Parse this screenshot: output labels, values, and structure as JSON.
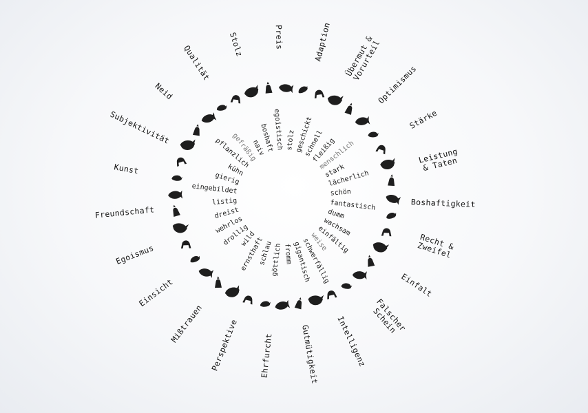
{
  "outer_labels": [
    "Adaption",
    [
      "Übermut &",
      "Vorurteil"
    ],
    "Optimismus",
    "Stärke",
    [
      "Leistung",
      "& Taten"
    ],
    "Boshaftigkeit",
    [
      "Recht &",
      "Zweifel"
    ],
    "Einfalt",
    [
      "Falscher",
      "Schein"
    ],
    "Intelligenz",
    "Gutmütigkeit",
    "Ehrfurcht",
    "Perspektive",
    "Mißtrauen",
    "Einsicht",
    "Egoismus",
    "Freundschaft",
    "Kunst",
    "Subjektivität",
    "Neid",
    "Qualität",
    "Stolz",
    "Preis"
  ],
  "inner_words": [
    {
      "text": "geschickt",
      "gray": false
    },
    {
      "text": "schnell",
      "gray": false
    },
    {
      "text": "fleißig",
      "gray": false
    },
    {
      "text": "menschlich",
      "gray": true
    },
    {
      "text": "stark",
      "gray": false
    },
    {
      "text": "lächerlich",
      "gray": false
    },
    {
      "text": "schön",
      "gray": false
    },
    {
      "text": "fantastisch",
      "gray": false
    },
    {
      "text": "dumm",
      "gray": false
    },
    {
      "text": "wachsam",
      "gray": false
    },
    {
      "text": "einfältig",
      "gray": false
    },
    {
      "text": "weise",
      "gray": true
    },
    {
      "text": "schwerfällig",
      "gray": false
    },
    {
      "text": "gigantisch",
      "gray": false
    },
    {
      "text": "fromm",
      "gray": false
    },
    {
      "text": "göttlich",
      "gray": false
    },
    {
      "text": "schlau",
      "gray": false
    },
    {
      "text": "ernsthaft",
      "gray": false
    },
    {
      "text": "wild",
      "gray": false
    },
    {
      "text": "drollig",
      "gray": false
    },
    {
      "text": "wehrlos",
      "gray": false
    },
    {
      "text": "dreist",
      "gray": false
    },
    {
      "text": "listig",
      "gray": false
    },
    {
      "text": "eingebildet",
      "gray": false
    },
    {
      "text": "gierig",
      "gray": false
    },
    {
      "text": "kühn",
      "gray": false
    },
    {
      "text": "pflanzlich",
      "gray": false
    },
    {
      "text": "gefräßig",
      "gray": true
    },
    {
      "text": "naiv",
      "gray": false
    },
    {
      "text": "boshaft",
      "gray": false
    },
    {
      "text": "egoistisch",
      "gray": false
    },
    {
      "text": "stolz",
      "gray": false
    }
  ],
  "animal_icons": [
    "bird-icon",
    "toucan-icon",
    "elephant-icon",
    "swan-icon",
    "lizard-icon",
    "owl-icon",
    "eagle-icon",
    "frog-icon",
    "meerkat-icon",
    "horse-icon",
    "pufferfish-icon",
    "turtle-icon",
    "parrot-icon",
    "camel-icon",
    "fish-icon",
    "snail-icon",
    "frog-icon",
    "mantis-icon",
    "cobra-icon",
    "dolphin-icon",
    "bug-icon",
    "rabbit-icon",
    "rooster-icon",
    "mule-icon",
    "antelope-icon",
    "lion-icon",
    "bull-icon",
    "shark-icon",
    "monkey-icon",
    "kangaroo-icon",
    "bear-icon",
    "wolf-icon",
    "chameleon-icon",
    "flamingo-icon",
    "giraffe-icon",
    "crow-icon",
    "peacock-icon",
    "rooster-icon",
    "dog-icon",
    "fox-icon"
  ]
}
